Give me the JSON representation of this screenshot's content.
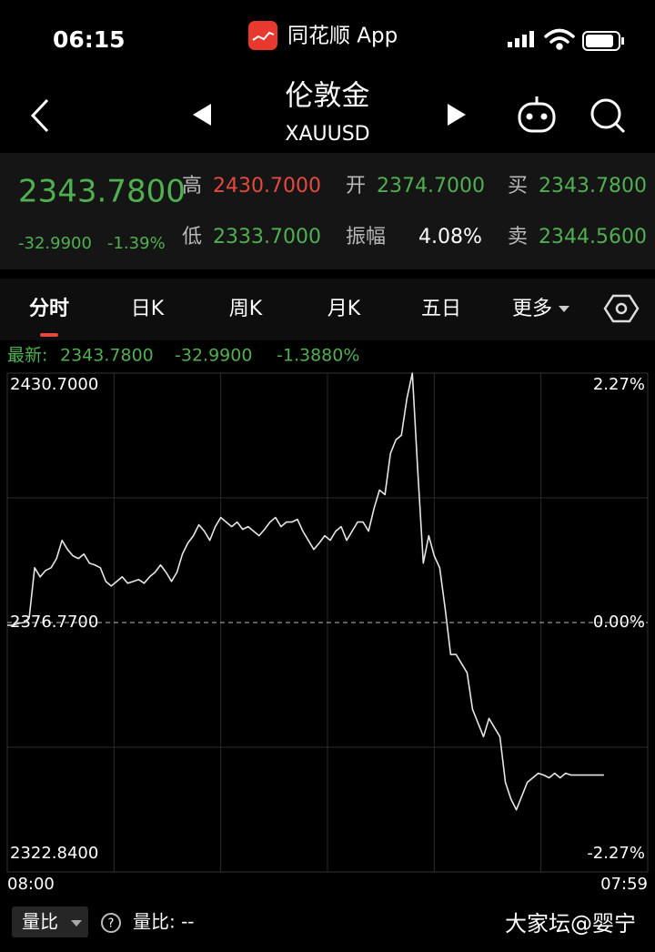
{
  "status_bar": {
    "time": "06:15",
    "app": "同花顺 App"
  },
  "header": {
    "title": "伦敦金",
    "symbol": "XAUUSD"
  },
  "quote": {
    "price": "2343.7800",
    "change": "-32.9900",
    "change_pct": "-1.39%",
    "fields": [
      {
        "label": "高",
        "value": "2430.7000"
      },
      {
        "label": "开",
        "value": "2374.7000"
      },
      {
        "label": "买",
        "value": "2343.7800"
      },
      {
        "label": "低",
        "value": "2333.7000"
      },
      {
        "label": "振幅",
        "value": "4.08%"
      },
      {
        "label": "卖",
        "value": "2344.5600"
      }
    ]
  },
  "tabs": [
    "分时",
    "日K",
    "周K",
    "月K",
    "五日",
    "更多"
  ],
  "latest": {
    "label": "最新:",
    "values": [
      "2343.7800",
      "-32.9900",
      "-1.3880%"
    ]
  },
  "chart_data": {
    "type": "line",
    "color": "#e6e6e6",
    "x_labels": [
      "08:00",
      "07:59"
    ],
    "values": [
      2376.18,
      2376.18,
      2376.57,
      2376.77,
      2377.76,
      2388.62,
      2386.65,
      2388.03,
      2388.62,
      2390.6,
      2394.55,
      2392.58,
      2391.19,
      2390.6,
      2391.59,
      2389.61,
      2389.22,
      2388.62,
      2385.66,
      2384.67,
      2385.66,
      2386.65,
      2385.27,
      2385.66,
      2386.06,
      2385.27,
      2386.65,
      2387.64,
      2389.22,
      2387.64,
      2385.66,
      2387.64,
      2391.59,
      2393.96,
      2395.54,
      2397.91,
      2396.53,
      2394.55,
      2397.51,
      2399.49,
      2398.5,
      2397.51,
      2398.5,
      2396.92,
      2397.51,
      2396.53,
      2395.54,
      2396.92,
      2398.5,
      2399.49,
      2397.51,
      2398.5,
      2398.5,
      2399.09,
      2396.53,
      2394.55,
      2392.58,
      2393.96,
      2395.54,
      2394.55,
      2396.53,
      2397.51,
      2394.55,
      2396.53,
      2398.5,
      2398.5,
      2396.53,
      2401.46,
      2405.42,
      2404.43,
      2413.32,
      2416.28,
      2417.27,
      2425.17,
      2430.7,
      2409.37,
      2389.61,
      2395.54,
      2391.19,
      2388.62,
      2379.73,
      2369.86,
      2369.86,
      2367.88,
      2365.91,
      2358.0,
      2355.04,
      2352.08,
      2356.03,
      2354.05,
      2352.08,
      2342.2,
      2338.64,
      2336.27,
      2339.24,
      2342.2,
      2343.19,
      2344.18,
      2343.78,
      2343.19,
      2344.18,
      2343.19,
      2344.18,
      2343.78,
      2343.78,
      2343.78,
      2343.78,
      2343.78,
      2343.78,
      2343.78,
      null,
      null,
      null,
      null,
      null,
      null,
      null,
      null
    ],
    "ylim": [
      2322.84,
      2430.7
    ],
    "yticks": [
      {
        "value": 2322.84,
        "label": "2322.8400"
      },
      {
        "value": 2376.77,
        "label": "2376.7700"
      },
      {
        "value": 2430.7,
        "label": "2430.7000"
      }
    ],
    "y2lim": [
      -2.27,
      2.27
    ],
    "y2ticks": [
      {
        "value": -2.27,
        "label": "-2.27%"
      },
      {
        "value": 0,
        "label": "0.00%"
      },
      {
        "value": 2.27,
        "label": "2.27%"
      }
    ]
  },
  "footer": {
    "indicator": "量比",
    "indicator_value": "量比: --",
    "watermark": "大家坛@婴宁"
  }
}
